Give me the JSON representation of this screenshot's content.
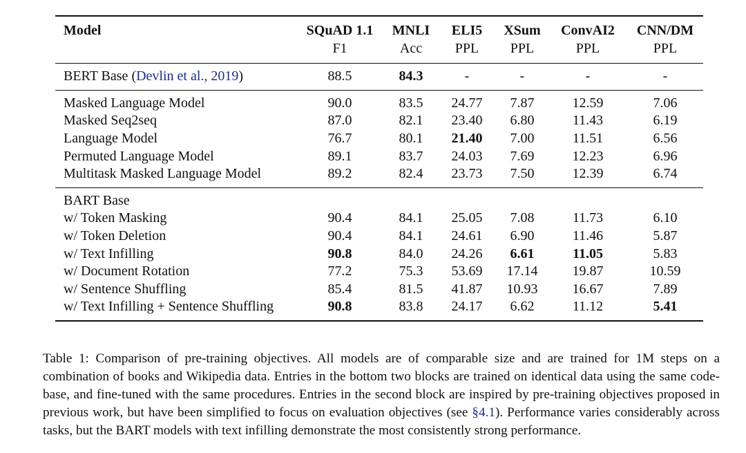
{
  "table": {
    "header": {
      "model_label": "Model",
      "columns": [
        {
          "name": "SQuAD 1.1",
          "metric": "F1"
        },
        {
          "name": "MNLI",
          "metric": "Acc"
        },
        {
          "name": "ELI5",
          "metric": "PPL"
        },
        {
          "name": "XSum",
          "metric": "PPL"
        },
        {
          "name": "ConvAI2",
          "metric": "PPL"
        },
        {
          "name": "CNN/DM",
          "metric": "PPL"
        }
      ]
    },
    "bert": {
      "name": "BERT Base",
      "cite_open": "(",
      "cite_text": "Devlin et al., 2019",
      "cite_close": ")",
      "values": [
        "88.5",
        "84.3",
        "-",
        "-",
        "-",
        "-"
      ]
    },
    "block2": [
      {
        "name": "Masked Language Model",
        "values": [
          "90.0",
          "83.5",
          "24.77",
          "7.87",
          "12.59",
          "7.06"
        ]
      },
      {
        "name": "Masked Seq2seq",
        "values": [
          "87.0",
          "82.1",
          "23.40",
          "6.80",
          "11.43",
          "6.19"
        ]
      },
      {
        "name": "Language Model",
        "values": [
          "76.7",
          "80.1",
          "21.40",
          "7.00",
          "11.51",
          "6.56"
        ]
      },
      {
        "name": "Permuted Language Model",
        "values": [
          "89.1",
          "83.7",
          "24.03",
          "7.69",
          "12.23",
          "6.96"
        ]
      },
      {
        "name": "Multitask Masked Language Model",
        "values": [
          "89.2",
          "82.4",
          "23.73",
          "7.50",
          "12.39",
          "6.74"
        ]
      }
    ],
    "block3_title": "BART Base",
    "block3": [
      {
        "name": "w/ Token Masking",
        "values": [
          "90.4",
          "84.1",
          "25.05",
          "7.08",
          "11.73",
          "6.10"
        ]
      },
      {
        "name": "w/ Token Deletion",
        "values": [
          "90.4",
          "84.1",
          "24.61",
          "6.90",
          "11.46",
          "5.87"
        ]
      },
      {
        "name": "w/ Text Infilling",
        "values": [
          "90.8",
          "84.0",
          "24.26",
          "6.61",
          "11.05",
          "5.83"
        ]
      },
      {
        "name": "w/ Document Rotation",
        "values": [
          "77.2",
          "75.3",
          "53.69",
          "17.14",
          "19.87",
          "10.59"
        ]
      },
      {
        "name": "w/ Sentence Shuffling",
        "values": [
          "85.4",
          "81.5",
          "41.87",
          "10.93",
          "16.67",
          "7.89"
        ]
      },
      {
        "name": "w/ Text Infilling + Sentence Shuffling",
        "values": [
          "90.8",
          "83.8",
          "24.17",
          "6.62",
          "11.12",
          "5.41"
        ]
      }
    ]
  },
  "caption": {
    "part1": "Table 1:  Comparison of pre-training objectives. All models are of comparable size and are trained for 1M steps on a combination of books and Wikipedia data.  Entries in the bottom two blocks are trained on identical data using the same code-base, and fine-tuned with the same procedures. Entries in the second block are inspired by pre-training objectives proposed in previous work, but have been simplified to focus on evaluation objectives (see ",
    "ref": "§4.1",
    "part2": "). Performance varies considerably across tasks, but the BART models with text infilling demonstrate the most consistently strong performance."
  },
  "colors": {
    "text": "#111111",
    "citation_link": "#1a2e8c"
  }
}
